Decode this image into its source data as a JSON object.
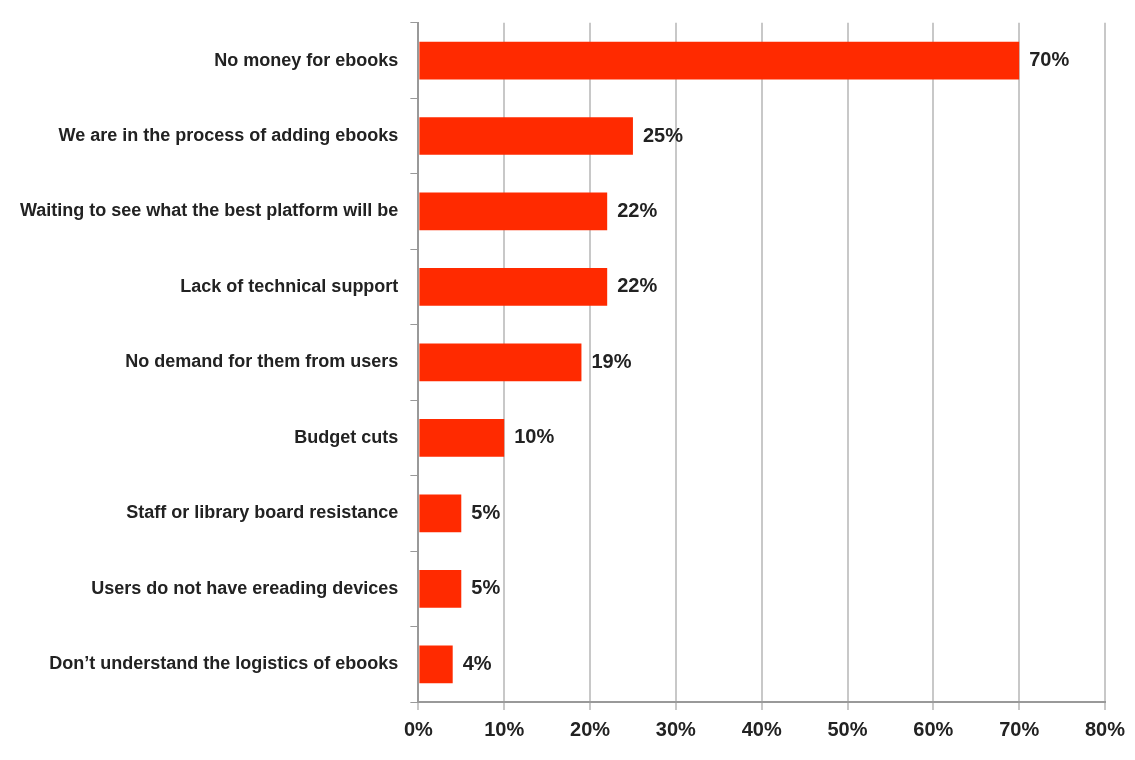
{
  "chart_data": {
    "type": "bar",
    "orientation": "horizontal",
    "categories": [
      "No money for ebooks",
      "We are in the process of adding ebooks",
      "Waiting to see what the best platform will be",
      "Lack of technical support",
      "No demand for them from users",
      "Budget cuts",
      "Staff or library board resistance",
      "Users do not have ereading devices",
      "Don’t understand the logistics of ebooks"
    ],
    "values": [
      70,
      25,
      22,
      22,
      19,
      10,
      5,
      5,
      4
    ],
    "value_labels": [
      "70%",
      "25%",
      "22%",
      "22%",
      "19%",
      "10%",
      "5%",
      "5%",
      "4%"
    ],
    "color": "#ff2a00",
    "xlim": [
      0,
      80
    ],
    "xticks": [
      {
        "value": 0,
        "label": "0%"
      },
      {
        "value": 10,
        "label": "10%"
      },
      {
        "value": 20,
        "label": "20%"
      },
      {
        "value": 30,
        "label": "30%"
      },
      {
        "value": 40,
        "label": "40%"
      },
      {
        "value": 50,
        "label": "50%"
      },
      {
        "value": 60,
        "label": "60%"
      },
      {
        "value": 70,
        "label": "70%"
      },
      {
        "value": 80,
        "label": "80%"
      }
    ],
    "grid": "x",
    "legend": false
  }
}
